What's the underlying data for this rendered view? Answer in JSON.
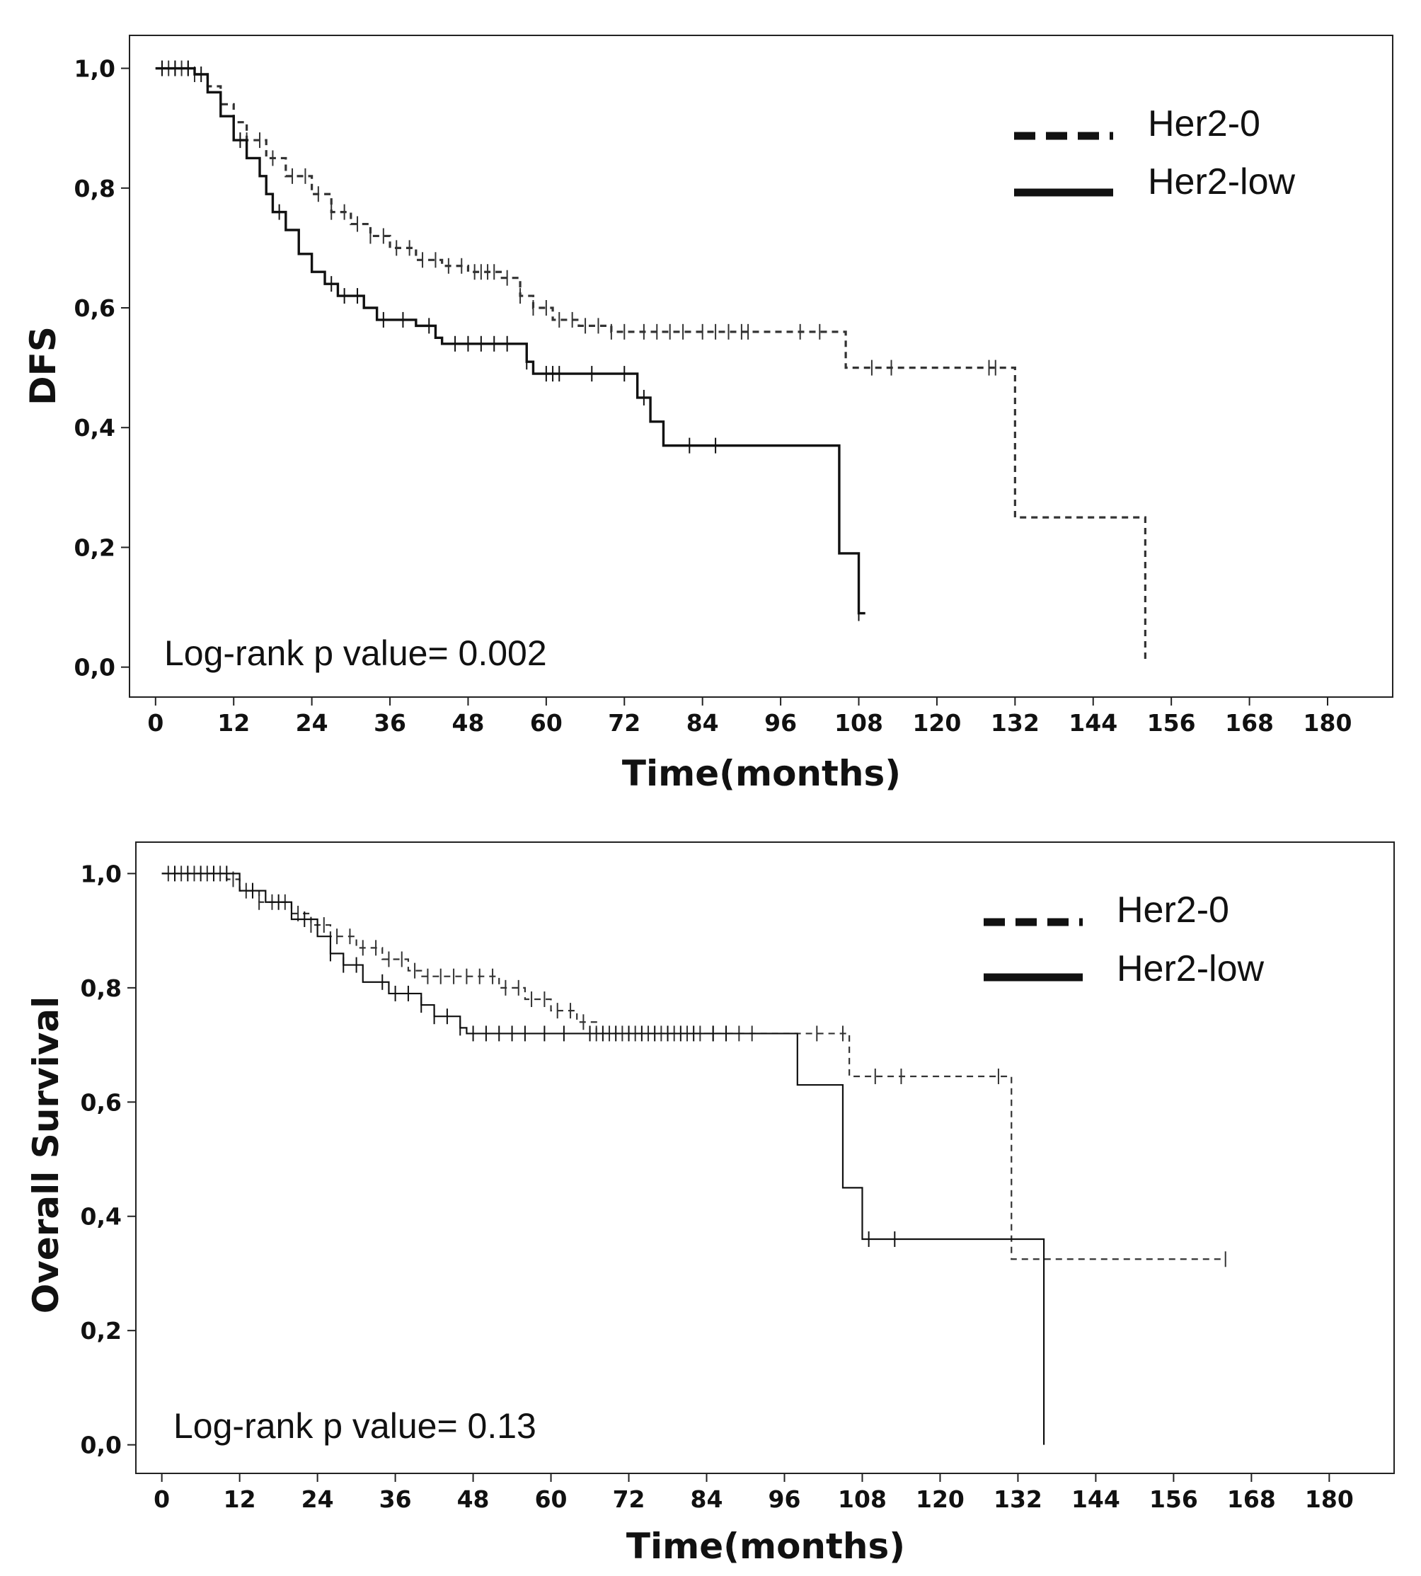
{
  "chart_data": [
    {
      "type": "line",
      "subtype": "kaplan-meier",
      "title": "",
      "xlabel": "Time(months)",
      "ylabel": "DFS",
      "xlim": [
        -4,
        190
      ],
      "ylim": [
        -0.05,
        1.055
      ],
      "xticks": [
        0,
        12,
        24,
        36,
        48,
        60,
        72,
        84,
        96,
        108,
        120,
        132,
        144,
        156,
        168,
        180
      ],
      "yticks": [
        0.0,
        0.2,
        0.4,
        0.6,
        0.8,
        1.0
      ],
      "ytick_labels": [
        "0,0",
        "0,2",
        "0,4",
        "0,6",
        "0,8",
        "1,0"
      ],
      "grid": false,
      "legend_position": "top-right",
      "annotation": "Log-rank p value= 0.002",
      "series": [
        {
          "name": "Her2-0",
          "style": "dashed",
          "steps": [
            [
              0,
              1.0
            ],
            [
              6,
              0.99
            ],
            [
              8,
              0.97
            ],
            [
              10,
              0.94
            ],
            [
              12,
              0.91
            ],
            [
              14,
              0.88
            ],
            [
              17,
              0.85
            ],
            [
              20,
              0.82
            ],
            [
              24,
              0.79
            ],
            [
              27,
              0.76
            ],
            [
              30,
              0.74
            ],
            [
              33,
              0.72
            ],
            [
              36,
              0.7
            ],
            [
              40,
              0.68
            ],
            [
              44,
              0.67
            ],
            [
              48,
              0.66
            ],
            [
              53,
              0.65
            ],
            [
              56,
              0.62
            ],
            [
              58,
              0.6
            ],
            [
              61,
              0.58
            ],
            [
              65,
              0.57
            ],
            [
              70,
              0.56
            ],
            [
              106,
              0.5
            ],
            [
              132,
              0.25
            ],
            [
              152,
              0.01
            ]
          ],
          "end": 152,
          "censor_times": [
            1,
            2,
            3,
            4,
            5,
            6,
            14,
            16,
            18,
            21,
            23,
            25,
            27,
            29,
            31,
            33,
            35,
            37,
            39,
            41,
            43,
            45,
            47,
            49,
            50,
            51,
            52,
            54,
            56,
            58,
            60,
            62,
            64,
            66,
            68,
            70,
            72,
            75,
            77,
            79,
            81,
            84,
            86,
            88,
            90,
            91,
            99,
            102,
            110,
            113,
            128,
            129
          ]
        },
        {
          "name": "Her2-low",
          "style": "solid",
          "steps": [
            [
              0,
              1.0
            ],
            [
              6,
              0.99
            ],
            [
              8,
              0.96
            ],
            [
              10,
              0.92
            ],
            [
              12,
              0.88
            ],
            [
              14,
              0.85
            ],
            [
              16,
              0.82
            ],
            [
              17,
              0.79
            ],
            [
              18,
              0.76
            ],
            [
              20,
              0.73
            ],
            [
              22,
              0.69
            ],
            [
              24,
              0.66
            ],
            [
              26,
              0.64
            ],
            [
              28,
              0.62
            ],
            [
              32,
              0.6
            ],
            [
              34,
              0.58
            ],
            [
              40,
              0.57
            ],
            [
              43,
              0.55
            ],
            [
              44,
              0.54
            ],
            [
              57,
              0.51
            ],
            [
              58,
              0.49
            ],
            [
              74,
              0.45
            ],
            [
              76,
              0.41
            ],
            [
              78,
              0.37
            ],
            [
              105,
              0.19
            ],
            [
              108,
              0.09
            ]
          ],
          "end": 109,
          "censor_times": [
            1,
            3,
            5,
            7,
            13,
            19,
            27,
            29,
            31,
            35,
            38,
            42,
            46,
            48,
            50,
            52,
            54,
            57,
            60,
            61,
            62,
            67,
            72,
            75,
            82,
            86,
            108
          ]
        }
      ]
    },
    {
      "type": "line",
      "subtype": "kaplan-meier",
      "title": "",
      "xlabel": "Time(months)",
      "ylabel": "Overall Survival",
      "xlim": [
        -4,
        190
      ],
      "ylim": [
        -0.05,
        1.055
      ],
      "xticks": [
        0,
        12,
        24,
        36,
        48,
        60,
        72,
        84,
        96,
        108,
        120,
        132,
        144,
        156,
        168,
        180
      ],
      "yticks": [
        0.0,
        0.2,
        0.4,
        0.6,
        0.8,
        1.0
      ],
      "ytick_labels": [
        "0,0",
        "0,2",
        "0,4",
        "0,6",
        "0,8",
        "1,0"
      ],
      "grid": false,
      "legend_position": "top-right",
      "annotation": "Log-rank p value= 0.13",
      "series": [
        {
          "name": "Her2-0",
          "style": "dashed",
          "steps": [
            [
              0,
              1.0
            ],
            [
              10,
              0.99
            ],
            [
              12,
              0.97
            ],
            [
              15,
              0.95
            ],
            [
              20,
              0.93
            ],
            [
              23,
              0.91
            ],
            [
              26,
              0.89
            ],
            [
              30,
              0.87
            ],
            [
              34,
              0.85
            ],
            [
              38,
              0.83
            ],
            [
              40,
              0.82
            ],
            [
              52,
              0.8
            ],
            [
              56,
              0.78
            ],
            [
              60,
              0.76
            ],
            [
              64,
              0.74
            ],
            [
              67,
              0.72
            ],
            [
              106,
              0.645
            ],
            [
              131,
              0.325
            ]
          ],
          "end": 164,
          "censor_times": [
            1,
            3,
            5,
            7,
            9,
            11,
            13,
            15,
            17,
            19,
            21,
            23,
            25,
            27,
            29,
            31,
            33,
            35,
            37,
            39,
            41,
            43,
            45,
            47,
            49,
            51,
            53,
            55,
            57,
            59,
            61,
            63,
            65,
            67,
            69,
            71,
            73,
            75,
            77,
            79,
            81,
            83,
            85,
            87,
            89,
            91,
            101,
            105,
            110,
            114,
            129,
            164
          ]
        },
        {
          "name": "Her2-low",
          "style": "solid",
          "steps": [
            [
              0,
              1.0
            ],
            [
              12,
              0.97
            ],
            [
              16,
              0.95
            ],
            [
              20,
              0.92
            ],
            [
              24,
              0.89
            ],
            [
              26,
              0.86
            ],
            [
              28,
              0.84
            ],
            [
              31,
              0.81
            ],
            [
              35,
              0.79
            ],
            [
              40,
              0.77
            ],
            [
              42,
              0.75
            ],
            [
              46,
              0.73
            ],
            [
              47,
              0.72
            ],
            [
              98,
              0.63
            ],
            [
              105,
              0.45
            ],
            [
              108,
              0.36
            ],
            [
              136,
              0.0
            ]
          ],
          "end": 136,
          "censor_times": [
            2,
            4,
            6,
            8,
            10,
            14,
            18,
            22,
            26,
            28,
            30,
            34,
            36,
            38,
            40,
            42,
            44,
            46,
            48,
            50,
            52,
            54,
            56,
            59,
            62,
            66,
            68,
            70,
            72,
            74,
            76,
            78,
            80,
            82,
            85,
            87,
            109,
            113
          ]
        }
      ]
    }
  ]
}
